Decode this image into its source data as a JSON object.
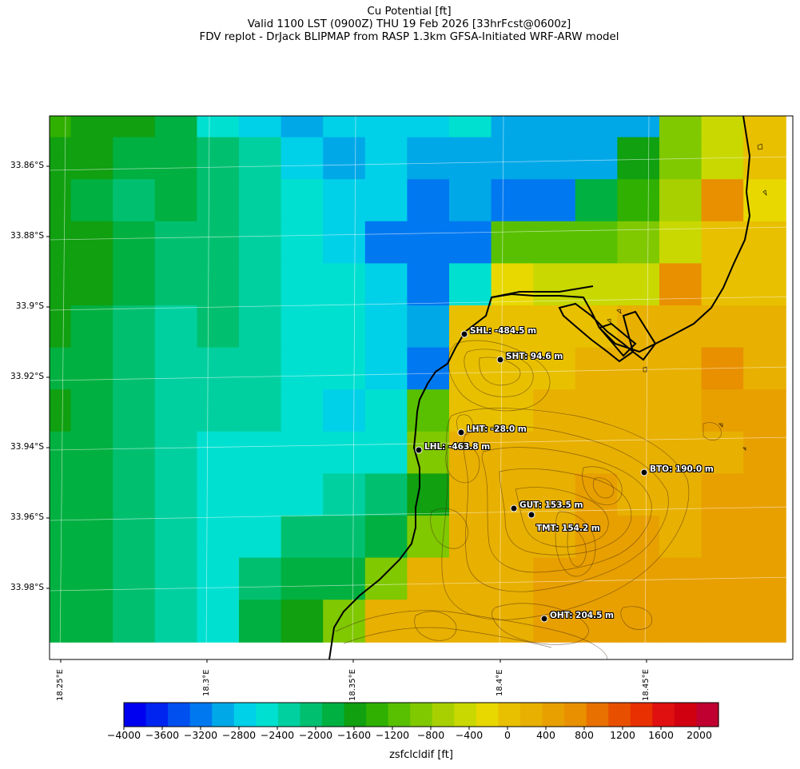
{
  "title": {
    "line1": "Cu Potential [ft]",
    "line2": "Valid 1100 LST (0900Z) THU 19 Feb 2026 [33hrFcst@0600z]",
    "line3": "FDV replot - DrJack BLIPMAP from RASP 1.3km GFSA-Initiated WRF-ARW model"
  },
  "axes": {
    "lat_labels": [
      "33.86°S",
      "33.88°S",
      "33.9°S",
      "33.92°S",
      "33.94°S",
      "33.96°S",
      "33.98°S"
    ],
    "lon_labels": [
      "18.25°E",
      "18.3°E",
      "18.35°E",
      "18.4°E",
      "18.45°E"
    ]
  },
  "stations": [
    {
      "label": "SHL: -484.5 m"
    },
    {
      "label": "SHT: 94.6 m"
    },
    {
      "label": "LHT: -28.0 m"
    },
    {
      "label": "LHL: -463.8 m"
    },
    {
      "label": "BTO: 190.0 m"
    },
    {
      "label": "GUT: 153.5 m"
    },
    {
      "label": "TMT: 154.2 m"
    },
    {
      "label": "OHT: 204.5 m"
    }
  ],
  "colorbar": {
    "label": "zsfclcldif [ft]",
    "min": -4000,
    "max": 2200,
    "step": 200,
    "ticks": [
      "−4000",
      "−3600",
      "−3200",
      "−2800",
      "−2400",
      "−2000",
      "−1600",
      "−1200",
      "−800",
      "−400",
      "0",
      "400",
      "800",
      "1200",
      "1600",
      "2000"
    ],
    "colors": [
      "#0000f0",
      "#0024f0",
      "#0050f0",
      "#0078f0",
      "#00a8e8",
      "#00d0e8",
      "#00e0d0",
      "#00d0a0",
      "#00c070",
      "#00b040",
      "#10a010",
      "#30b000",
      "#58c000",
      "#80c800",
      "#a8d000",
      "#c8d800",
      "#e8d800",
      "#e8c000",
      "#e8b000",
      "#e8a000",
      "#e89000",
      "#e87000",
      "#e85000",
      "#e83000",
      "#e01010",
      "#d00010",
      "#c00030"
    ]
  },
  "grid": {
    "rows": [
      [
        "#30b000",
        "#10a010",
        "#10a010",
        "#00b040",
        "#00e0d0",
        "#00d0e8",
        "#00a8e8",
        "#00d0e8",
        "#00d0e8",
        "#00d0e8",
        "#00e0d0",
        "#00a8e8",
        "#00a8e8",
        "#00a8e8",
        "#00a8e8",
        "#80c800",
        "#c8d800",
        "#e8c000"
      ],
      [
        "#10a010",
        "#10a010",
        "#00b040",
        "#00b040",
        "#00c070",
        "#00d0a0",
        "#00d0e8",
        "#00a8e8",
        "#00d0e8",
        "#00a8e8",
        "#00a8e8",
        "#00a8e8",
        "#00a8e8",
        "#00a8e8",
        "#10a010",
        "#80c800",
        "#c8d800",
        "#e8c000"
      ],
      [
        "#10a010",
        "#00b040",
        "#00c070",
        "#00b040",
        "#00c070",
        "#00d0a0",
        "#00e0d0",
        "#00d0e8",
        "#00d0e8",
        "#0078f0",
        "#00a8e8",
        "#0078f0",
        "#0078f0",
        "#00b040",
        "#30b000",
        "#a8d000",
        "#e89000",
        "#e8d800"
      ],
      [
        "#10a010",
        "#10a010",
        "#00b040",
        "#00c070",
        "#00c070",
        "#00d0a0",
        "#00e0d0",
        "#00d0e8",
        "#0078f0",
        "#0078f0",
        "#0078f0",
        "#58c000",
        "#58c000",
        "#58c000",
        "#80c800",
        "#c8d800",
        "#e8c000",
        "#e8c000"
      ],
      [
        "#10a010",
        "#10a010",
        "#00b040",
        "#00c070",
        "#00c070",
        "#00d0a0",
        "#00e0d0",
        "#00e0d0",
        "#00d0e8",
        "#0078f0",
        "#00e0d0",
        "#e8d800",
        "#c8d800",
        "#c8d800",
        "#c8d800",
        "#e89000",
        "#e8c000",
        "#e8c000"
      ],
      [
        "#10a010",
        "#00b040",
        "#00c070",
        "#00d0a0",
        "#00c070",
        "#00d0a0",
        "#00e0d0",
        "#00e0d0",
        "#00d0e8",
        "#00a8e8",
        "#e8c000",
        "#e8c000",
        "#e8c000",
        "#e8c000",
        "#e8b000",
        "#e8b000",
        "#e8b000",
        "#e8b000"
      ],
      [
        "#00b040",
        "#00b040",
        "#00c070",
        "#00d0a0",
        "#00d0a0",
        "#00d0a0",
        "#00e0d0",
        "#00e0d0",
        "#00d0e8",
        "#0078f0",
        "#e8c000",
        "#e8c000",
        "#e8c000",
        "#e8b000",
        "#e8b000",
        "#e8b000",
        "#e89000",
        "#e8b000"
      ],
      [
        "#10a010",
        "#00b040",
        "#00c070",
        "#00d0a0",
        "#00d0a0",
        "#00d0a0",
        "#00e0d0",
        "#00d0e8",
        "#00e0d0",
        "#58c000",
        "#e8c000",
        "#e8c000",
        "#e8b000",
        "#e8b000",
        "#e8b000",
        "#e8b000",
        "#e8a000",
        "#e8a000"
      ],
      [
        "#00b040",
        "#00b040",
        "#00c070",
        "#00d0a0",
        "#00e0d0",
        "#00e0d0",
        "#00e0d0",
        "#00e0d0",
        "#00e0d0",
        "#80c800",
        "#e8b000",
        "#e8b000",
        "#e8b000",
        "#e8b000",
        "#e8b000",
        "#e8b000",
        "#e8b000",
        "#e8a000"
      ],
      [
        "#00b040",
        "#00b040",
        "#00c070",
        "#00d0a0",
        "#00e0d0",
        "#00e0d0",
        "#00e0d0",
        "#00d0a0",
        "#00c070",
        "#10a010",
        "#e8b000",
        "#e8b000",
        "#e8b000",
        "#e8a000",
        "#e8b000",
        "#e8b000",
        "#e8a000",
        "#e8a000"
      ],
      [
        "#00b040",
        "#00b040",
        "#00c070",
        "#00d0a0",
        "#00e0d0",
        "#00e0d0",
        "#00c070",
        "#00c070",
        "#00b040",
        "#80c800",
        "#e8b000",
        "#e8b000",
        "#e8b000",
        "#e8a000",
        "#e8a000",
        "#e8b000",
        "#e8a000",
        "#e8a000"
      ],
      [
        "#00b040",
        "#00b040",
        "#00c070",
        "#00d0a0",
        "#00e0d0",
        "#00c070",
        "#00b040",
        "#00b040",
        "#80c800",
        "#e8b000",
        "#e8b000",
        "#e8b000",
        "#e8a000",
        "#e8a000",
        "#e8a000",
        "#e8a000",
        "#e8a000",
        "#e8a000"
      ],
      [
        "#00b040",
        "#00b040",
        "#00c070",
        "#00d0a0",
        "#00e0d0",
        "#00b040",
        "#10a010",
        "#80c800",
        "#e8b000",
        "#e8b000",
        "#e8b000",
        "#e8b000",
        "#e8a000",
        "#e8a000",
        "#e8a000",
        "#e8a000",
        "#e8a000",
        "#e8a000"
      ]
    ]
  }
}
